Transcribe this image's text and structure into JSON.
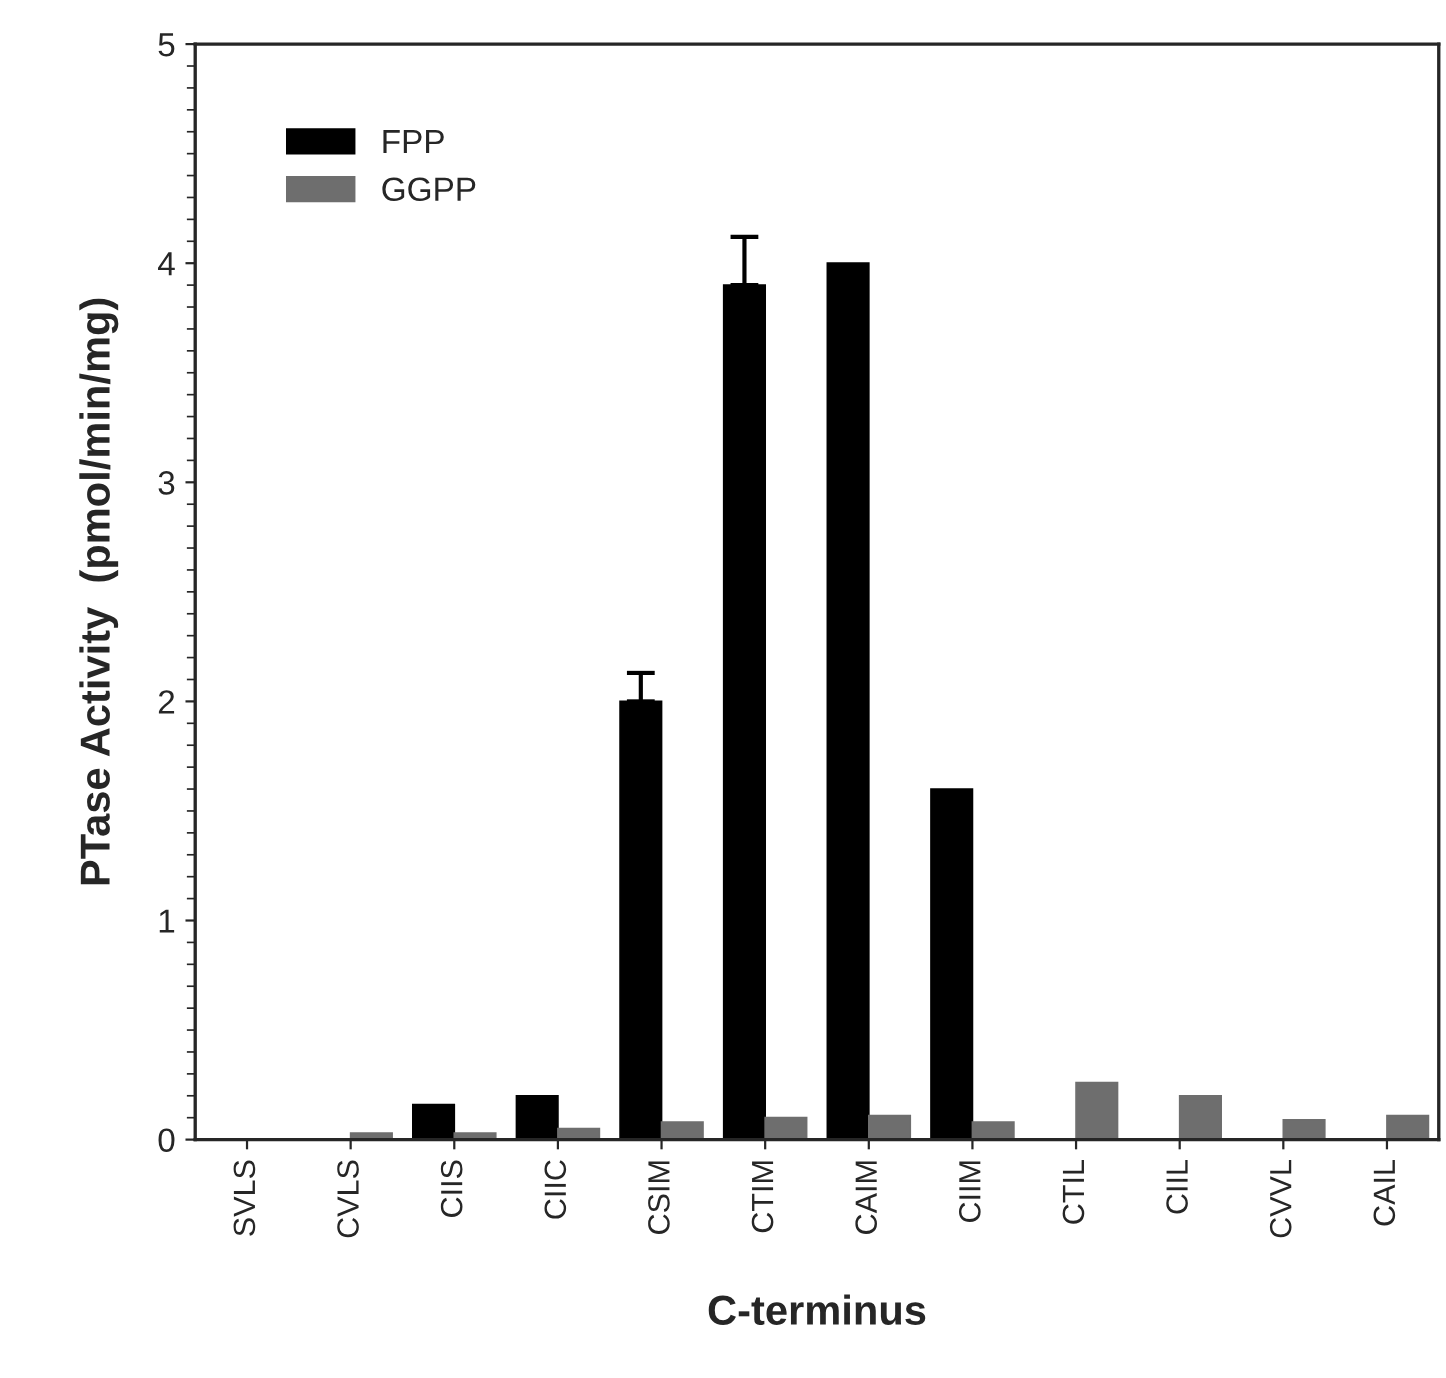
{
  "chart_data": {
    "type": "bar",
    "xlabel": "C-terminus",
    "ylabel": "PTase Activity  (pmol/min/mg)",
    "categories": [
      "SVLS",
      "CVLS",
      "CIIS",
      "CIIC",
      "CSIM",
      "CTIM",
      "CAIM",
      "CIIM",
      "CTIL",
      "CIIL",
      "CVVL",
      "CAIL"
    ],
    "series": [
      {
        "name": "FPP",
        "color": "#000000",
        "values": [
          0,
          0,
          0.16,
          0.2,
          2.0,
          3.9,
          4.0,
          1.6,
          0,
          0,
          0,
          0
        ],
        "errors": [
          null,
          null,
          null,
          null,
          [
            2.0,
            2.13
          ],
          [
            3.9,
            4.12
          ],
          null,
          null,
          null,
          null,
          null,
          null
        ]
      },
      {
        "name": "GGPP",
        "color": "#6e6e6e",
        "values": [
          0,
          0.03,
          0.03,
          0.05,
          0.08,
          0.1,
          0.11,
          0.08,
          0.26,
          0.2,
          0.09,
          0.11
        ]
      }
    ],
    "ylim": [
      0,
      5
    ],
    "yticks": [
      0,
      1,
      2,
      3,
      4,
      5
    ],
    "legend": "top left",
    "grid": false
  }
}
